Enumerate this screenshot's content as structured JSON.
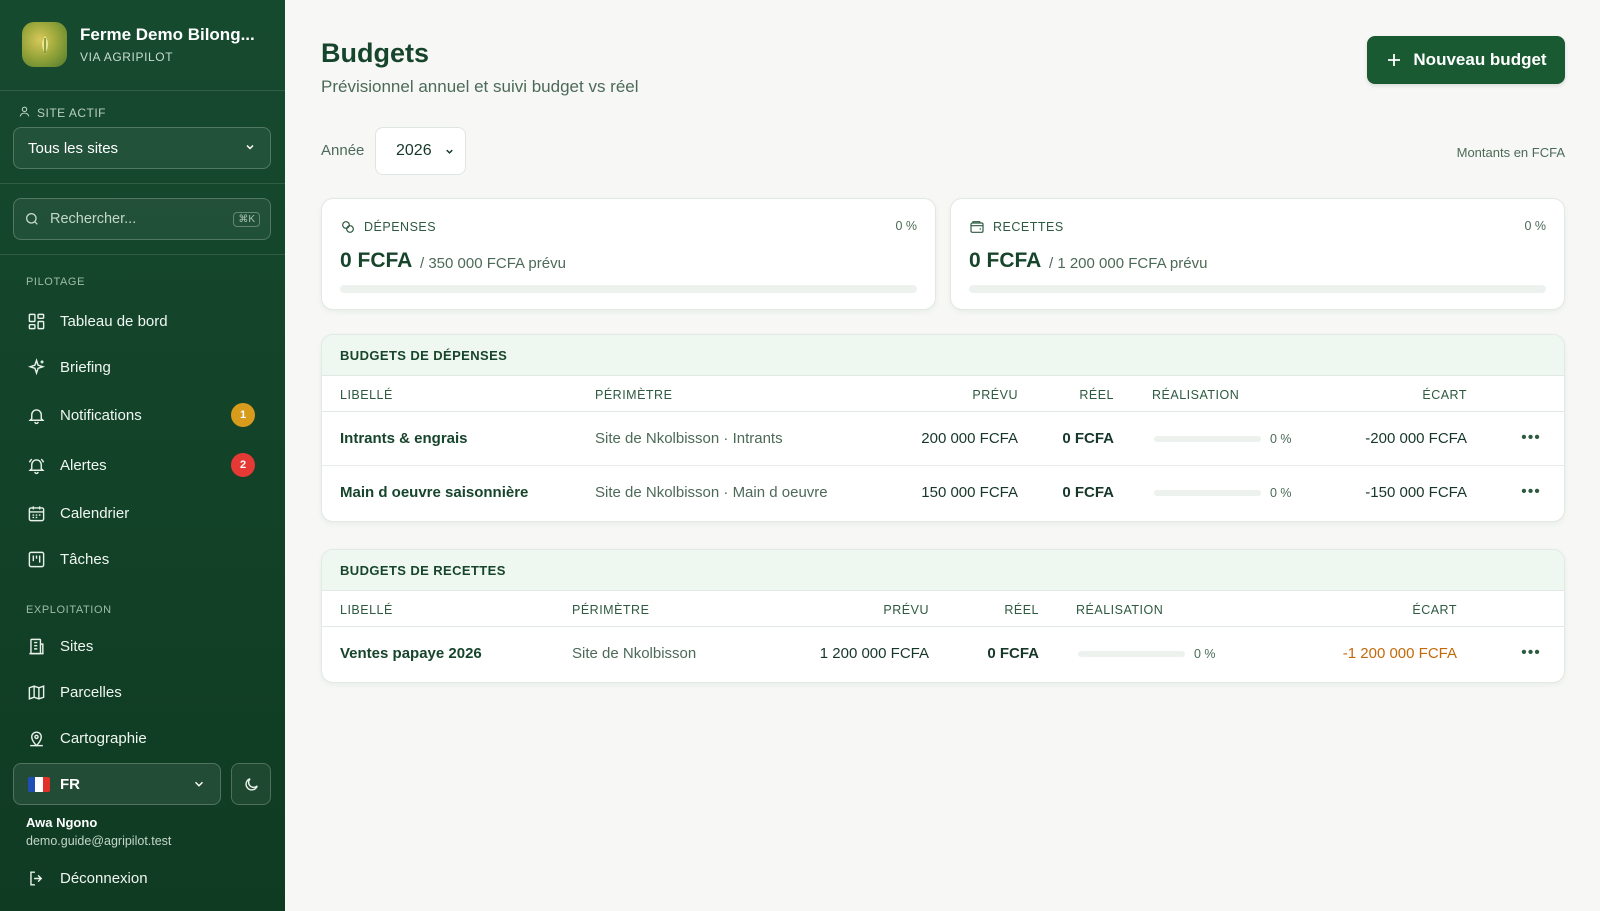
{
  "sidebar": {
    "brand": {
      "title": "Ferme Demo Bilong...",
      "subtitle": "VIA AGRIPILOT"
    },
    "site": {
      "label": "SITE ACTIF",
      "value": "Tous les sites"
    },
    "search": {
      "placeholder": "Rechercher...",
      "shortcut": "⌘K"
    },
    "sections": [
      {
        "title": "PILOTAGE",
        "items": [
          {
            "label": "Tableau de bord",
            "icon": "dashboard-icon"
          },
          {
            "label": "Briefing",
            "icon": "sparkles-icon"
          },
          {
            "label": "Notifications",
            "icon": "bell-icon",
            "badge": "1",
            "badge_color": "#d89b1c"
          },
          {
            "label": "Alertes",
            "icon": "alarm-bell-icon",
            "badge": "2",
            "badge_color": "#e53935"
          },
          {
            "label": "Calendrier",
            "icon": "calendar-icon"
          },
          {
            "label": "Tâches",
            "icon": "kanban-icon"
          }
        ]
      },
      {
        "title": "EXPLOITATION",
        "items": [
          {
            "label": "Sites",
            "icon": "building-icon"
          },
          {
            "label": "Parcelles",
            "icon": "map-icon"
          },
          {
            "label": "Cartographie",
            "icon": "map-pin-icon"
          }
        ]
      }
    ],
    "language": {
      "value": "FR"
    },
    "user": {
      "name": "Awa Ngono",
      "email": "demo.guide@agripilot.test"
    },
    "logout_label": "Déconnexion"
  },
  "header": {
    "title": "Budgets",
    "subtitle": "Prévisionnel annuel et suivi budget vs réel",
    "new_button": "Nouveau budget"
  },
  "filters": {
    "year_label": "Année",
    "year_value": "2026",
    "currency_note": "Montants en FCFA"
  },
  "summary": {
    "expenses": {
      "label": "DÉPENSES",
      "pct": "0 %",
      "progress": 0,
      "amount": "0 FCFA",
      "planned": "/ 350 000 FCFA prévu"
    },
    "income": {
      "label": "RECETTES",
      "pct": "0 %",
      "progress": 0,
      "amount": "0 FCFA",
      "planned": "/ 1 200 000 FCFA prévu"
    }
  },
  "expense_budgets": {
    "title": "BUDGETS DE DÉPENSES",
    "columns": {
      "label": "LIBELLÉ",
      "scope": "PÉRIMÈTRE",
      "planned": "PRÉVU",
      "actual": "RÉEL",
      "realization": "RÉALISATION",
      "variance": "ÉCART"
    },
    "rows": [
      {
        "label": "Intrants & engrais",
        "scope": "Site de Nkolbisson · Intrants",
        "planned": "200 000 FCFA",
        "actual": "0 FCFA",
        "progress": 0,
        "pct": "0 %",
        "variance": "-200 000 FCFA"
      },
      {
        "label": "Main d oeuvre saisonnière",
        "scope": "Site de Nkolbisson · Main d oeuvre",
        "planned": "150 000 FCFA",
        "actual": "0 FCFA",
        "progress": 0,
        "pct": "0 %",
        "variance": "-150 000 FCFA"
      }
    ]
  },
  "income_budgets": {
    "title": "BUDGETS DE RECETTES",
    "columns": {
      "label": "LIBELLÉ",
      "scope": "PÉRIMÈTRE",
      "planned": "PRÉVU",
      "actual": "RÉEL",
      "realization": "RÉALISATION",
      "variance": "ÉCART"
    },
    "rows": [
      {
        "label": "Ventes papaye 2026",
        "scope": "Site de Nkolbisson",
        "planned": "1 200 000 FCFA",
        "actual": "0 FCFA",
        "progress": 0,
        "pct": "0 %",
        "variance": "-1 200 000 FCFA",
        "variance_color": "#c46a0a"
      }
    ]
  },
  "colors": {
    "sidebar": "#164a2f",
    "accent": "#1a5a33",
    "panel_head": "#eff8f0"
  }
}
